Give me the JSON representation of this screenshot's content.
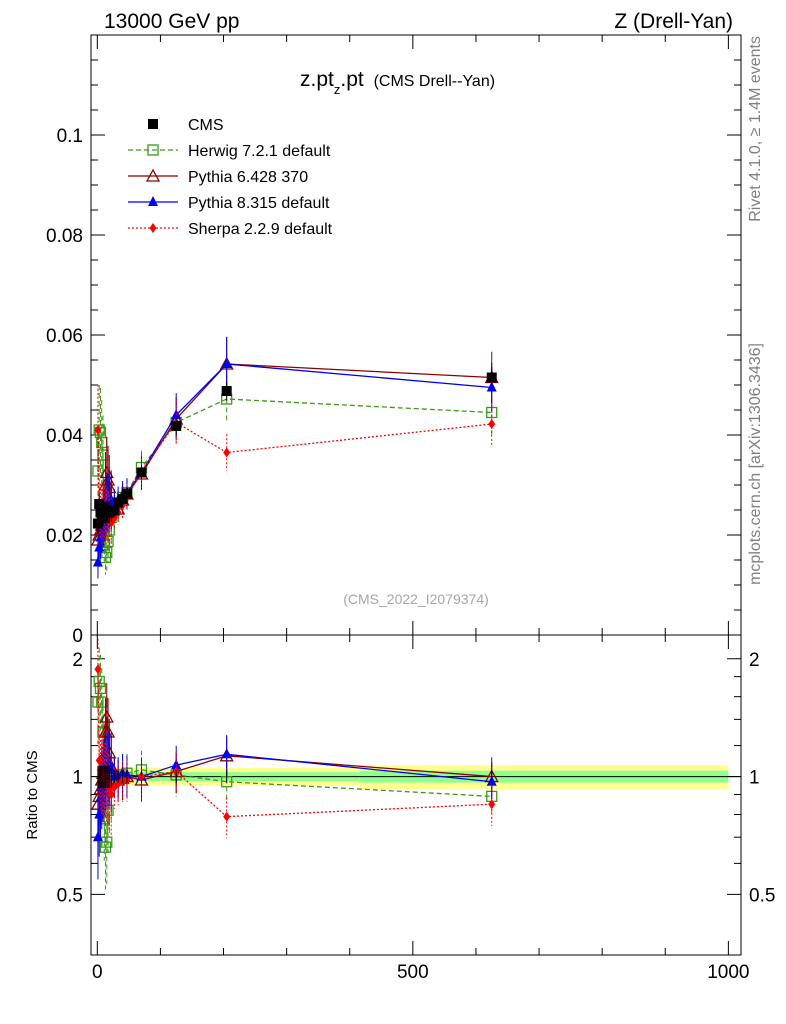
{
  "header": {
    "left": "13000 GeV pp",
    "right": "Z (Drell-Yan)"
  },
  "side": {
    "rivet": "Rivet 4.1.0, ≥ 1.4M events",
    "mcplots": "mcplots.cern.ch [arXiv:1306.3436]"
  },
  "plot": {
    "title_main": "z.pt",
    "title_sub": "z",
    "title_tail": ".pt",
    "title_paren": "(CMS Drell--Yan)",
    "analysis": "(CMS_2022_I2079374)",
    "ratio_ylabel": "Ratio to CMS"
  },
  "colors": {
    "cms": "#000000",
    "herwig": "#3a9a18",
    "pythia6": "#8b0000",
    "pythia8": "#0000ee",
    "sherpa": "#ff0000",
    "band_inner": "#90ff90",
    "band_outer": "#ffff90"
  },
  "chart_data": {
    "type": "line",
    "title": "z.pt_z.pt (CMS Drell--Yan)",
    "xlabel": "",
    "ylabel_main": "",
    "ylabel_ratio": "Ratio to CMS",
    "xlim": [
      -10,
      1020
    ],
    "ylim_main": [
      0,
      0.12
    ],
    "ylim_ratio": [
      0.35,
      2.3
    ],
    "main_yticks": [
      0,
      0.02,
      0.04,
      0.06,
      0.08,
      0.1
    ],
    "main_ytick_labels": [
      "0",
      "0.02",
      "0.04",
      "0.06",
      "0.08",
      "0.1"
    ],
    "ratio_yticks": [
      0.5,
      1,
      2
    ],
    "ratio_ytick_labels": [
      "0.5",
      "1",
      "2"
    ],
    "xticks": [
      0,
      500,
      1000
    ],
    "xtick_labels": [
      "0",
      "500",
      "1000"
    ],
    "legend_position": "top-left",
    "x": [
      1,
      3,
      5,
      7,
      9,
      11,
      13,
      15,
      17,
      19,
      22,
      27,
      33,
      40,
      47,
      70,
      125,
      205,
      625
    ],
    "series": [
      {
        "name": "CMS",
        "marker": "filled-square",
        "values": [
          0.0223,
          0.0262,
          0.0245,
          0.0237,
          0.024,
          0.0245,
          0.0245,
          0.0245,
          0.0245,
          0.0245,
          0.0248,
          0.025,
          0.0265,
          0.0272,
          0.0283,
          0.0325,
          0.0418,
          0.0488,
          0.0515
        ],
        "ratio": [
          1,
          1,
          1,
          1,
          1,
          1,
          1,
          1,
          1,
          1,
          1,
          1,
          1,
          1,
          1,
          1,
          1,
          1,
          1
        ],
        "band_inner_frac": 0.035,
        "band_outer_frac": 0.07
      },
      {
        "name": "Herwig 7.2.1 default",
        "marker": "open-square",
        "line": "dashed",
        "values": [
          0.0328,
          0.041,
          0.0405,
          0.0385,
          0.036,
          0.018,
          0.0155,
          0.0165,
          0.0187,
          0.021,
          0.0235,
          0.025,
          0.0262,
          0.0275,
          0.0285,
          0.0335,
          0.0425,
          0.0472,
          0.0445
        ],
        "ratio": [
          1.55,
          1.75,
          1.68,
          1.55,
          1.3,
          0.78,
          0.66,
          0.68,
          0.82,
          0.92,
          0.99,
          1.0,
          1.0,
          1.01,
          1.02,
          1.04,
          1.01,
          0.97,
          0.89
        ]
      },
      {
        "name": "Pythia 6.428 370",
        "marker": "open-triangle",
        "line": "solid",
        "values": [
          0.019,
          0.02,
          0.021,
          0.022,
          0.0235,
          0.025,
          0.03,
          0.0325,
          0.031,
          0.0295,
          0.0265,
          0.0255,
          0.0252,
          0.027,
          0.0282,
          0.0322,
          0.0432,
          0.0542,
          0.0515
        ],
        "ratio": [
          0.85,
          0.89,
          0.93,
          0.98,
          1.02,
          1.12,
          1.3,
          1.42,
          1.3,
          1.15,
          1.06,
          1.01,
          0.98,
          0.99,
          1.0,
          0.98,
          1.03,
          1.13,
          1.0
        ]
      },
      {
        "name": "Pythia 8.315 default",
        "marker": "filled-triangle",
        "line": "solid",
        "values": [
          0.0145,
          0.0175,
          0.0195,
          0.021,
          0.0225,
          0.024,
          0.025,
          0.026,
          0.0265,
          0.027,
          0.027,
          0.0265,
          0.027,
          0.028,
          0.0285,
          0.0325,
          0.044,
          0.0542,
          0.0495
        ],
        "ratio": [
          0.7,
          0.8,
          0.88,
          0.94,
          0.98,
          1.02,
          1.05,
          1.06,
          1.08,
          1.08,
          1.04,
          1.0,
          1.0,
          1.02,
          1.01,
          1.0,
          1.07,
          1.14,
          0.97
        ]
      },
      {
        "name": "Sherpa 2.2.9 default",
        "marker": "filled-diamond",
        "line": "dotted",
        "values": [
          0.041,
          0.0255,
          0.0248,
          0.0245,
          0.0243,
          0.0242,
          0.0245,
          0.0238,
          0.0235,
          0.023,
          0.0225,
          0.0235,
          0.0245,
          0.026,
          0.0275,
          0.0328,
          0.0425,
          0.0365,
          0.0422
        ],
        "ratio": [
          1.88,
          1.1,
          1.04,
          1.02,
          1.01,
          1.0,
          1.0,
          0.97,
          0.96,
          0.93,
          0.9,
          0.94,
          0.96,
          0.98,
          0.98,
          1.0,
          1.03,
          0.79,
          0.85
        ]
      }
    ]
  }
}
